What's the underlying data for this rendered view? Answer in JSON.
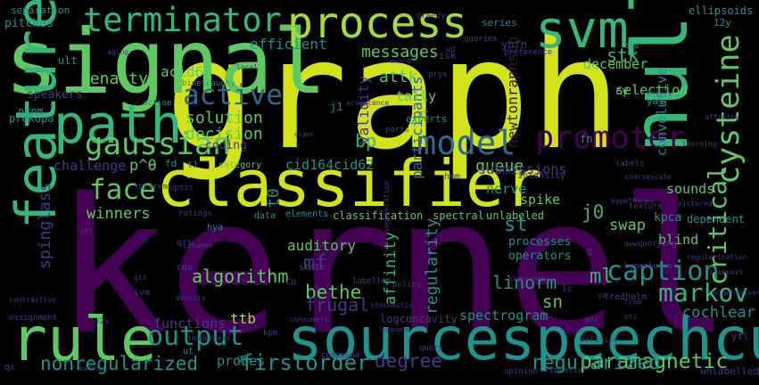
{
  "palette": {
    "background": "#000000",
    "yellow": "#d2e21b",
    "lime": "#a5db36",
    "green": "#5ec962",
    "teal_green": "#35b779",
    "teal": "#21918c",
    "blue": "#31688e",
    "indigo": "#443a83",
    "purple": "#440154",
    "dim_purple": "#2f1a40",
    "dim_teal": "#124b4d"
  },
  "words": [
    {
      "text": "kernel",
      "color": "purple",
      "vertical": false
    },
    {
      "text": "graph",
      "color": "yellow",
      "vertical": false
    },
    {
      "text": "signal",
      "color": "green",
      "vertical": false
    },
    {
      "text": "classifier",
      "color": "yellow",
      "vertical": false
    },
    {
      "text": "sourcespeechcue",
      "color": "teal",
      "vertical": false
    },
    {
      "text": "rule",
      "color": "green",
      "vertical": false
    },
    {
      "text": "path",
      "color": "teal_green",
      "vertical": false
    },
    {
      "text": "feature",
      "color": "teal_green",
      "vertical": true
    },
    {
      "text": "nullpitch",
      "color": "teal_green",
      "vertical": true
    },
    {
      "text": "process",
      "color": "lime",
      "vertical": false
    },
    {
      "text": "svm",
      "color": "teal_green",
      "vertical": false
    },
    {
      "text": "terminator",
      "color": "teal_green",
      "vertical": false
    },
    {
      "text": "gaussian",
      "color": "green",
      "vertical": false
    },
    {
      "text": "model",
      "color": "blue",
      "vertical": false
    },
    {
      "text": "promoter",
      "color": "purple",
      "vertical": false
    },
    {
      "text": "cysteine",
      "color": "green",
      "vertical": true
    },
    {
      "text": "output",
      "color": "teal",
      "vertical": false
    },
    {
      "text": "active",
      "color": "blue",
      "vertical": false
    },
    {
      "text": "caption",
      "color": "teal",
      "vertical": false
    },
    {
      "text": "face",
      "color": "green",
      "vertical": false
    },
    {
      "text": "markov",
      "color": "teal_green",
      "vertical": false
    },
    {
      "text": "paramagnetic",
      "color": "green",
      "vertical": false
    },
    {
      "text": "firstorder",
      "color": "teal",
      "vertical": false
    },
    {
      "text": "regularized",
      "color": "teal",
      "vertical": false
    },
    {
      "text": "degree",
      "color": "indigo",
      "vertical": false
    },
    {
      "text": "nonregularized",
      "color": "teal",
      "vertical": false
    },
    {
      "text": "critical",
      "color": "green",
      "vertical": true
    },
    {
      "text": "spinglass",
      "color": "indigo",
      "vertical": true
    },
    {
      "text": "penalty",
      "color": "green",
      "vertical": false
    },
    {
      "text": "messages",
      "color": "green",
      "vertical": false
    },
    {
      "text": "stk",
      "color": "teal_green",
      "vertical": false
    },
    {
      "text": "attk",
      "color": "green",
      "vertical": false
    },
    {
      "text": "bp",
      "color": "teal_green",
      "vertical": false
    },
    {
      "text": "queue",
      "color": "green",
      "vertical": false
    },
    {
      "text": "solution",
      "color": "green",
      "vertical": false
    },
    {
      "text": "decision",
      "color": "green",
      "vertical": false
    },
    {
      "text": "bethe",
      "color": "green",
      "vertical": false
    },
    {
      "text": "frugal",
      "color": "indigo",
      "vertical": false
    },
    {
      "text": "algorithm",
      "color": "green",
      "vertical": false
    },
    {
      "text": "mf",
      "color": "indigo",
      "vertical": false
    },
    {
      "text": "ml",
      "color": "teal_green",
      "vertical": false
    },
    {
      "text": "linorm",
      "color": "teal",
      "vertical": false
    },
    {
      "text": "sn",
      "color": "green",
      "vertical": false
    },
    {
      "text": "j0",
      "color": "teal_green",
      "vertical": false
    },
    {
      "text": "st",
      "color": "teal",
      "vertical": false
    },
    {
      "text": "swap",
      "color": "green",
      "vertical": false
    },
    {
      "text": "blind",
      "color": "green",
      "vertical": false
    },
    {
      "text": "ttb",
      "color": "lime",
      "vertical": false
    },
    {
      "text": "winners",
      "color": "green",
      "vertical": false
    },
    {
      "text": "auditory",
      "color": "green",
      "vertical": false
    },
    {
      "text": "regularity",
      "color": "teal",
      "vertical": true
    },
    {
      "text": "affinity",
      "color": "teal_green",
      "vertical": true
    },
    {
      "text": "participants",
      "color": "blue",
      "vertical": true
    },
    {
      "text": "validity",
      "color": "indigo",
      "vertical": true
    },
    {
      "text": "convolutive",
      "color": "teal",
      "vertical": true
    },
    {
      "text": "newtonraphson",
      "color": "dim_purple",
      "vertical": true
    },
    {
      "text": "cochlear",
      "color": "teal",
      "vertical": false
    },
    {
      "text": "functions",
      "color": "indigo",
      "vertical": false
    },
    {
      "text": "probes",
      "color": "teal",
      "vertical": false
    },
    {
      "text": "spectrogram",
      "color": "teal",
      "vertical": false
    },
    {
      "text": "submissions",
      "color": "indigo",
      "vertical": false
    },
    {
      "text": "challenge",
      "color": "indigo",
      "vertical": false
    },
    {
      "text": "selection",
      "color": "green",
      "vertical": false
    },
    {
      "text": "december",
      "color": "green",
      "vertical": false
    },
    {
      "text": "efficient",
      "color": "teal",
      "vertical": false
    },
    {
      "text": "acid62",
      "color": "green",
      "vertical": false
    },
    {
      "text": "tally",
      "color": "green",
      "vertical": false
    },
    {
      "text": "coding",
      "color": "indigo",
      "vertical": false
    },
    {
      "text": "cid164cid62",
      "color": "teal",
      "vertical": false
    },
    {
      "text": "p^θ",
      "color": "green",
      "vertical": false
    },
    {
      "text": "spike",
      "color": "green",
      "vertical": false
    },
    {
      "text": "sounds",
      "color": "green",
      "vertical": false
    },
    {
      "text": "nerve",
      "color": "teal",
      "vertical": false
    },
    {
      "text": "t0",
      "color": "teal",
      "vertical": true
    },
    {
      "text": "kpca",
      "color": "teal",
      "vertical": false
    },
    {
      "text": "dependent",
      "color": "teal",
      "vertical": false
    },
    {
      "text": "classification",
      "color": "green",
      "vertical": false
    },
    {
      "text": "spectral",
      "color": "green",
      "vertical": false
    },
    {
      "text": "unlabeled",
      "color": "green",
      "vertical": false
    },
    {
      "text": "processes",
      "color": "teal",
      "vertical": false
    },
    {
      "text": "operators",
      "color": "teal",
      "vertical": false
    },
    {
      "text": "logconcavity",
      "color": "indigo",
      "vertical": false
    },
    {
      "text": "series",
      "color": "teal",
      "vertical": false
    },
    {
      "text": "separation",
      "color": "teal",
      "vertical": false
    },
    {
      "text": "pitches",
      "color": "teal",
      "vertical": false
    },
    {
      "text": "ellipsoids",
      "color": "teal",
      "vertical": false
    },
    {
      "text": "12y",
      "color": "teal",
      "vertical": false
    },
    {
      "text": "esd",
      "color": "teal",
      "vertical": false
    },
    {
      "text": "ynfn",
      "color": "indigo",
      "vertical": false
    },
    {
      "text": "speakers",
      "color": "indigo",
      "vertical": false
    },
    {
      "text": "action",
      "color": "teal",
      "vertical": false
    },
    {
      "text": "ncnm",
      "color": "teal",
      "vertical": false
    },
    {
      "text": "prekopa",
      "color": "teal",
      "vertical": false
    },
    {
      "text": "ult",
      "color": "teal",
      "vertical": false
    },
    {
      "text": "binetcauchy",
      "color": "teal",
      "vertical": false
    },
    {
      "text": "j1",
      "color": "teal",
      "vertical": false
    },
    {
      "text": "rt",
      "color": "teal",
      "vertical": false
    },
    {
      "text": "experts",
      "color": "teal",
      "vertical": false
    },
    {
      "text": "fn",
      "color": "teal",
      "vertical": false
    },
    {
      "text": "cy",
      "color": "green",
      "vertical": false
    },
    {
      "text": "ya1",
      "color": "teal",
      "vertical": false
    },
    {
      "text": "hmm",
      "color": "indigo",
      "vertical": false
    },
    {
      "text": "intensity",
      "color": "indigo",
      "vertical": false
    },
    {
      "text": "theorem",
      "color": "indigo",
      "vertical": false
    },
    {
      "text": "optic",
      "color": "indigo",
      "vertical": false
    },
    {
      "text": "category",
      "color": "green",
      "vertical": false
    },
    {
      "text": "fd",
      "color": "teal",
      "vertical": false
    },
    {
      "text": "t1",
      "color": "teal",
      "vertical": false
    },
    {
      "text": "data",
      "color": "teal",
      "vertical": false
    },
    {
      "text": "elements",
      "color": "teal",
      "vertical": false
    },
    {
      "text": "hya",
      "color": "teal",
      "vertical": false
    },
    {
      "text": "qrs",
      "color": "indigo",
      "vertical": false
    },
    {
      "text": "ivm",
      "color": "indigo",
      "vertical": false
    },
    {
      "text": "cqa",
      "color": "indigo",
      "vertical": false
    },
    {
      "text": "cu",
      "color": "indigo",
      "vertical": false
    },
    {
      "text": "state",
      "color": "indigo",
      "vertical": false
    },
    {
      "text": "v2s",
      "color": "indigo",
      "vertical": false
    },
    {
      "text": "kpm",
      "color": "indigo",
      "vertical": false
    },
    {
      "text": "gt",
      "color": "teal",
      "vertical": false
    },
    {
      "text": "ut",
      "color": "teal",
      "vertical": false
    },
    {
      "text": "compound",
      "color": "indigo",
      "vertical": false
    },
    {
      "text": "opinion",
      "color": "indigo",
      "vertical": false
    },
    {
      "text": "query",
      "color": "indigo",
      "vertical": false
    },
    {
      "text": "policy",
      "color": "indigo",
      "vertical": false
    },
    {
      "text": "labelled",
      "color": "indigo",
      "vertical": false
    },
    {
      "text": "lc",
      "color": "indigo",
      "vertical": false
    },
    {
      "text": "2et",
      "color": "indigo",
      "vertical": false
    },
    {
      "text": "fredholm",
      "color": "indigo",
      "vertical": false
    },
    {
      "text": "hypothesis",
      "color": "indigo",
      "vertical": false
    },
    {
      "text": "unlabelled",
      "color": "indigo",
      "vertical": false
    },
    {
      "text": "fibrosis",
      "color": "indigo",
      "vertical": false
    },
    {
      "text": "definite",
      "color": "indigo",
      "vertical": false
    },
    {
      "text": "risk",
      "color": "indigo",
      "vertical": false
    },
    {
      "text": "ud",
      "color": "indigo",
      "vertical": false
    },
    {
      "text": "queries",
      "color": "indigo",
      "vertical": false
    },
    {
      "text": "greedy",
      "color": "indigo",
      "vertical": false
    },
    {
      "text": "preference",
      "color": "indigo",
      "vertical": false
    },
    {
      "text": "reward",
      "color": "indigo",
      "vertical": false
    },
    {
      "text": "local",
      "color": "indigo",
      "vertical": false
    },
    {
      "text": "aging",
      "color": "indigo",
      "vertical": false
    },
    {
      "text": "pryx",
      "color": "indigo",
      "vertical": false
    },
    {
      "text": "acceptance",
      "color": "indigo",
      "vertical": false
    },
    {
      "text": "parts",
      "color": "indigo",
      "vertical": false
    },
    {
      "text": "eigen",
      "color": "indigo",
      "vertical": false
    },
    {
      "text": "sensory",
      "color": "indigo",
      "vertical": false
    },
    {
      "text": "affinity",
      "color": "indigo",
      "vertical": false
    },
    {
      "text": "learning",
      "color": "indigo",
      "vertical": false
    },
    {
      "text": "labels",
      "color": "indigo",
      "vertical": false
    },
    {
      "text": "coarsescale",
      "color": "indigo",
      "vertical": false
    },
    {
      "text": "hypotheses",
      "color": "indigo",
      "vertical": false
    },
    {
      "text": "texture",
      "color": "indigo",
      "vertical": false
    },
    {
      "text": "pictured",
      "color": "indigo",
      "vertical": false
    },
    {
      "text": "querying",
      "color": "indigo",
      "vertical": false
    },
    {
      "text": "segmentation",
      "color": "indigo",
      "vertical": true
    },
    {
      "text": "eigenvectors",
      "color": "indigo",
      "vertical": false
    },
    {
      "text": "eigensolver",
      "color": "indigo",
      "vertical": false
    },
    {
      "text": "stochastic",
      "color": "indigo",
      "vertical": false
    },
    {
      "text": "consumers",
      "color": "indigo",
      "vertical": false
    },
    {
      "text": "language",
      "color": "indigo",
      "vertical": false
    },
    {
      "text": "tenderness",
      "color": "indigo",
      "vertical": false
    },
    {
      "text": "matrix",
      "color": "indigo",
      "vertical": false
    },
    {
      "text": "contrastive",
      "color": "indigo",
      "vertical": false
    },
    {
      "text": "assignment",
      "color": "indigo",
      "vertical": false
    },
    {
      "text": "density",
      "color": "indigo",
      "vertical": false
    },
    {
      "text": "columns",
      "color": "indigo",
      "vertical": false
    },
    {
      "text": "ratings",
      "color": "indigo",
      "vertical": false
    },
    {
      "text": "regularization",
      "color": "indigo",
      "vertical": false
    },
    {
      "text": "steepest",
      "color": "indigo",
      "vertical": false
    },
    {
      "text": "tree",
      "color": "indigo",
      "vertical": false
    },
    {
      "text": "yx",
      "color": "indigo",
      "vertical": false
    },
    {
      "text": "nti",
      "color": "indigo",
      "vertical": false
    },
    {
      "text": "p0x",
      "color": "indigo",
      "vertical": false
    },
    {
      "text": "qx",
      "color": "indigo",
      "vertical": false
    },
    {
      "text": "gti",
      "color": "indigo",
      "vertical": false
    },
    {
      "text": "ytl",
      "color": "indigo",
      "vertical": false
    },
    {
      "text": "ytl",
      "color": "indigo",
      "vertical": false
    },
    {
      "text": "ya",
      "color": "indigo",
      "vertical": true
    },
    {
      "text": "qww",
      "color": "indigo",
      "vertical": false
    },
    {
      "text": "tc",
      "color": "indigo",
      "vertical": false
    }
  ]
}
